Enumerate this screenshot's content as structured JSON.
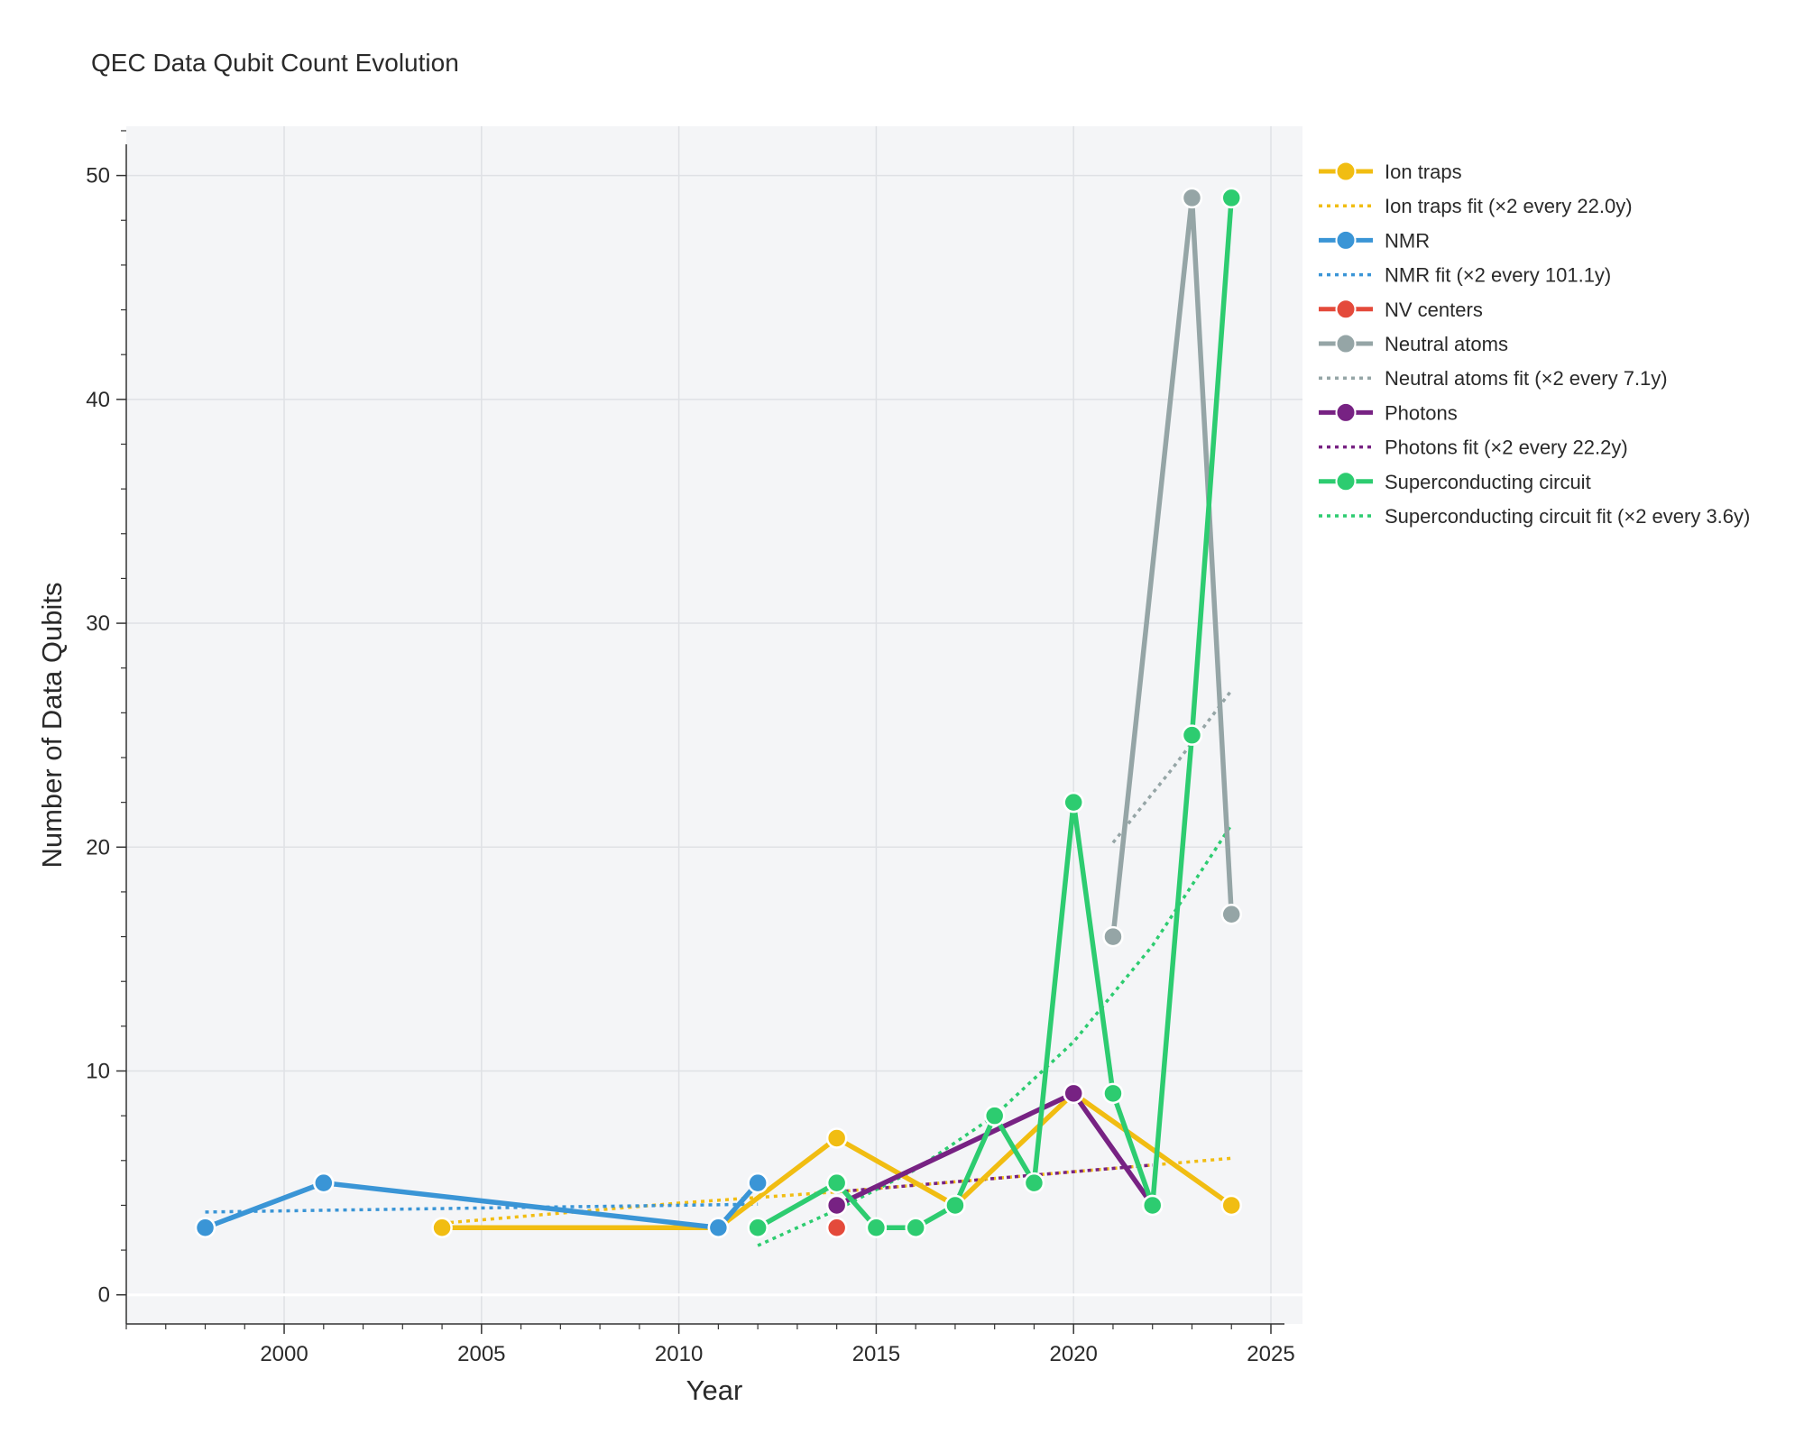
{
  "chart_data": {
    "type": "line",
    "title": "QEC Data Qubit Count Evolution",
    "xlabel": "Year",
    "ylabel": "Number of Data Qubits",
    "xlim": [
      1996,
      2025.8
    ],
    "ylim": [
      -1.3,
      52.2
    ],
    "xticks": [
      2000,
      2005,
      2010,
      2015,
      2020,
      2025
    ],
    "yticks": [
      0,
      10,
      20,
      30,
      40,
      50
    ],
    "grid": true,
    "legend_position": "outside right",
    "series": [
      {
        "name": "Ion traps",
        "kind": "data",
        "color": "#f1bd12",
        "points": [
          [
            2004,
            3
          ],
          [
            2011,
            3
          ],
          [
            2014,
            7
          ],
          [
            2017,
            4
          ],
          [
            2020,
            9
          ],
          [
            2024,
            4
          ]
        ]
      },
      {
        "name": "Ion traps fit (×2 every 22.0y)",
        "kind": "fit",
        "color": "#f1bd12",
        "points": [
          [
            2004,
            3.2
          ],
          [
            2010,
            4.1
          ],
          [
            2014,
            4.6
          ],
          [
            2018,
            5.2
          ],
          [
            2024,
            6.1
          ]
        ]
      },
      {
        "name": "NMR",
        "kind": "data",
        "color": "#3a95d6",
        "points": [
          [
            1998,
            3
          ],
          [
            2001,
            5
          ],
          [
            2011,
            3
          ],
          [
            2012,
            5
          ]
        ]
      },
      {
        "name": "NMR fit (×2 every 101.1y)",
        "kind": "fit",
        "color": "#3a95d6",
        "points": [
          [
            1998,
            3.7
          ],
          [
            2005,
            3.88
          ],
          [
            2012,
            4.05
          ]
        ]
      },
      {
        "name": "NV centers",
        "kind": "data",
        "color": "#e44a3b",
        "points": [
          [
            2014,
            3
          ]
        ]
      },
      {
        "name": "Neutral atoms",
        "kind": "data",
        "color": "#95a5a6",
        "points": [
          [
            2021,
            16
          ],
          [
            2023,
            49
          ],
          [
            2024,
            17
          ]
        ]
      },
      {
        "name": "Neutral atoms fit (×2 every 7.1y)",
        "kind": "fit",
        "color": "#95a5a6",
        "points": [
          [
            2021,
            20.2
          ],
          [
            2022.5,
            23.5
          ],
          [
            2024,
            27
          ]
        ]
      },
      {
        "name": "Photons",
        "kind": "data",
        "color": "#772283",
        "points": [
          [
            2014,
            4
          ],
          [
            2020,
            9
          ],
          [
            2022,
            4
          ]
        ]
      },
      {
        "name": "Photons fit (×2 every 22.2y)",
        "kind": "fit",
        "color": "#772283",
        "points": [
          [
            2014,
            4.6
          ],
          [
            2018,
            5.2
          ],
          [
            2022,
            5.8
          ]
        ]
      },
      {
        "name": "Superconducting circuit",
        "kind": "data",
        "color": "#2dcc70",
        "points": [
          [
            2012,
            3
          ],
          [
            2014,
            5
          ],
          [
            2015,
            3
          ],
          [
            2016,
            3
          ],
          [
            2017,
            4
          ],
          [
            2018,
            8
          ],
          [
            2019,
            5
          ],
          [
            2020,
            22
          ],
          [
            2021,
            9
          ],
          [
            2022,
            4
          ],
          [
            2023,
            25
          ],
          [
            2024,
            49
          ]
        ]
      },
      {
        "name": "Superconducting circuit fit (×2 every 3.6y)",
        "kind": "fit",
        "color": "#2dcc70",
        "points": [
          [
            2012,
            2.2
          ],
          [
            2014,
            3.8
          ],
          [
            2016,
            5.6
          ],
          [
            2018,
            8.0
          ],
          [
            2020,
            11.3
          ],
          [
            2022,
            15.6
          ],
          [
            2024,
            21
          ]
        ]
      }
    ]
  }
}
